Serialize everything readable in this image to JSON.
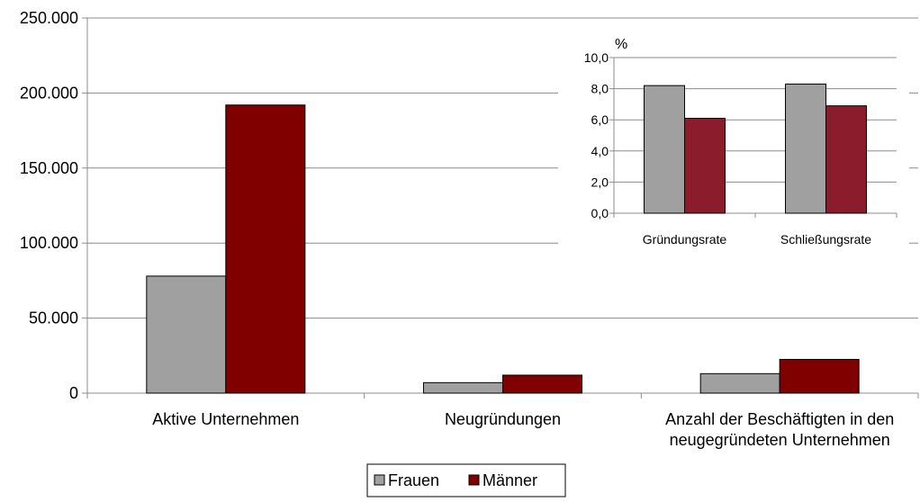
{
  "chart_data": [
    {
      "type": "bar",
      "categories": [
        [
          "Aktive Unternehmen"
        ],
        [
          "Neugründungen"
        ],
        [
          "Anzahl der Beschäftigten in den",
          "neugegründeten Unternehmen"
        ]
      ],
      "series": [
        {
          "name": "Frauen",
          "color": "#a0a0a0",
          "values": [
            78000,
            7000,
            13000
          ]
        },
        {
          "name": "Männer",
          "color": "#800000",
          "values": [
            192000,
            12000,
            22500
          ]
        }
      ],
      "ylim": [
        0,
        250000
      ],
      "yticks": [
        "0",
        "50.000",
        "100.000",
        "150.000",
        "200.000",
        "250.000"
      ],
      "ytick_values": [
        0,
        50000,
        100000,
        150000,
        200000,
        250000
      ],
      "grid": true,
      "legend": "bottom-center"
    },
    {
      "type": "bar",
      "ylabel": "%",
      "categories": [
        "Gründungsrate",
        "Schließungsrate"
      ],
      "series": [
        {
          "name": "Frauen",
          "color": "#a0a0a0",
          "values": [
            8.2,
            8.3
          ]
        },
        {
          "name": "Männer",
          "color": "#8b1c2c",
          "values": [
            6.1,
            6.9
          ]
        }
      ],
      "ylim": [
        0,
        10
      ],
      "yticks": [
        "0,0",
        "2,0",
        "4,0",
        "6,0",
        "8,0",
        "10,0"
      ],
      "ytick_values": [
        0,
        2,
        4,
        6,
        8,
        10
      ],
      "grid": true,
      "placement": "inset-top-right"
    }
  ],
  "legend": {
    "items": [
      {
        "label": "Frauen",
        "color": "#a0a0a0"
      },
      {
        "label": "Männer",
        "color": "#800000"
      }
    ]
  }
}
